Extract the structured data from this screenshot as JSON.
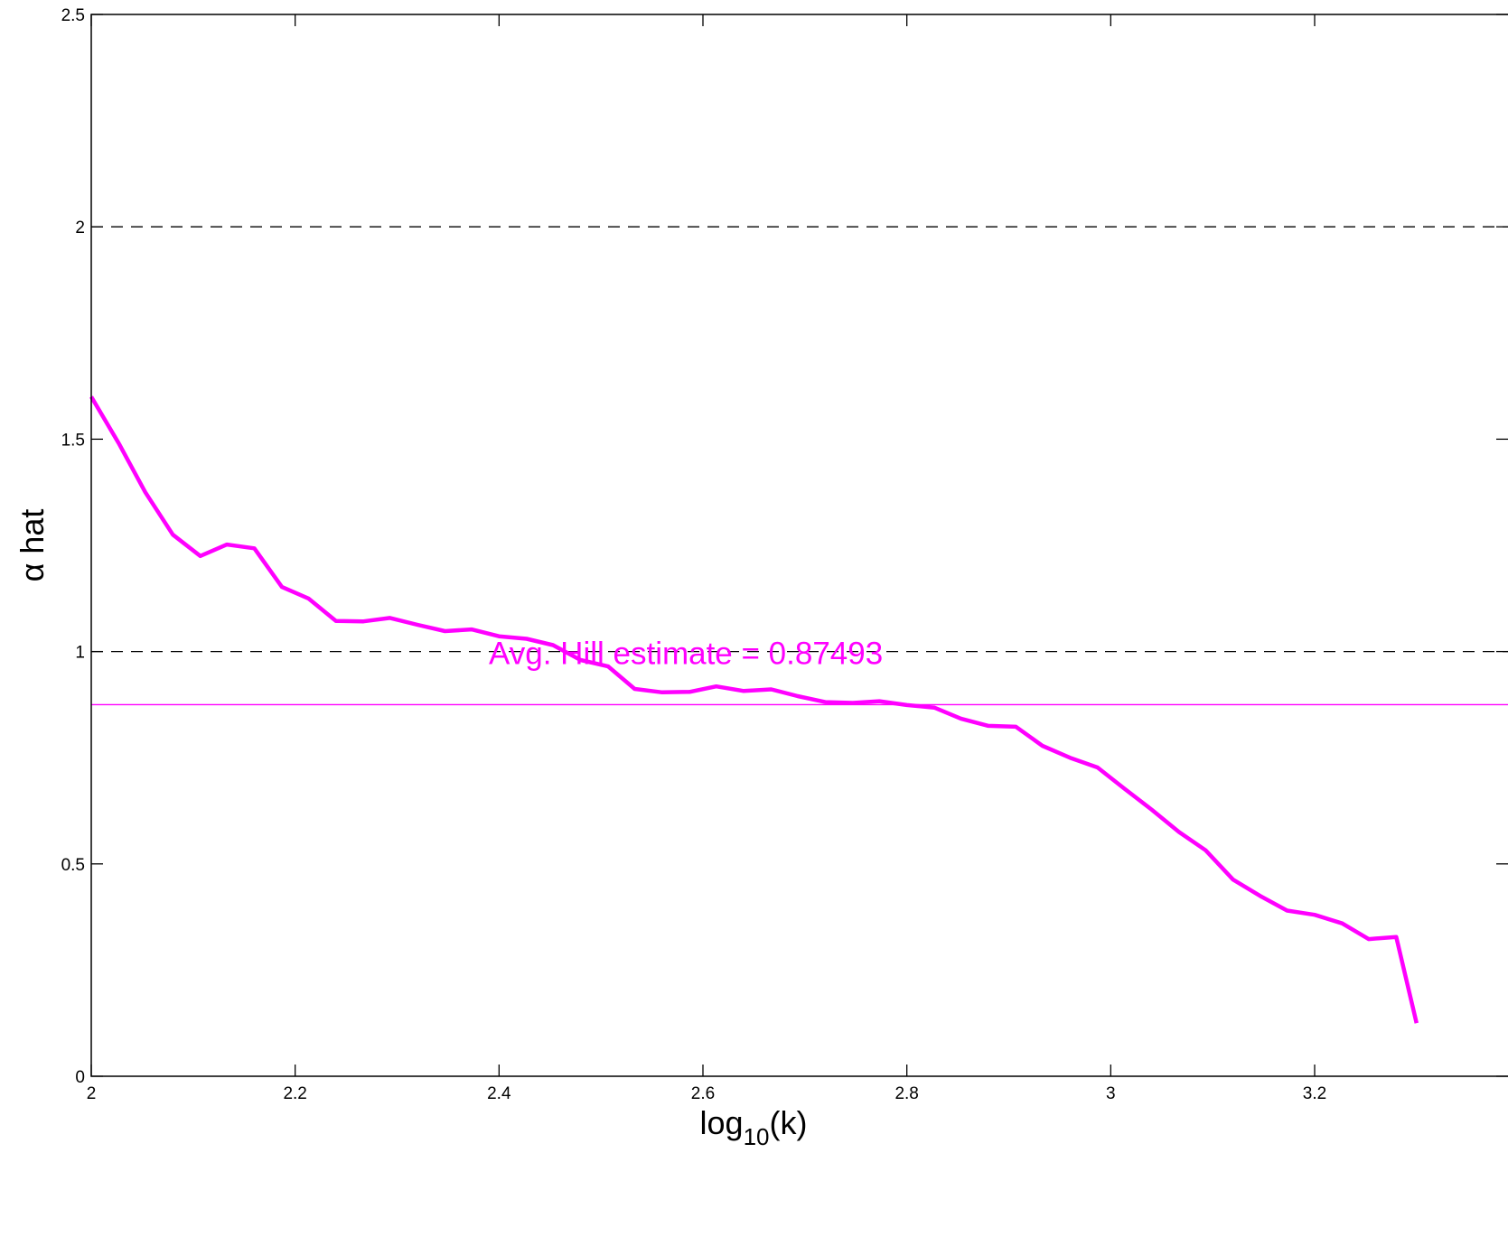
{
  "chart_data": {
    "type": "line",
    "title": "",
    "xlabel": {
      "base": "log",
      "subscript": "10",
      "suffix": "(k)"
    },
    "ylabel": "α hat",
    "xlim": [
      2,
      3.3
    ],
    "ylim": [
      0,
      2.5
    ],
    "x_ticks": [
      2,
      2.2,
      2.4,
      2.6,
      2.8,
      3,
      3.2
    ],
    "x_tick_labels": [
      "2",
      "2.2",
      "2.4",
      "2.6",
      "2.8",
      "3",
      "3.2"
    ],
    "y_ticks": [
      0,
      0.5,
      1,
      1.5,
      2,
      2.5
    ],
    "y_tick_labels": [
      "0",
      "0.5",
      "1",
      "1.5",
      "2",
      "2.5"
    ],
    "grid": false,
    "reference_lines": [
      {
        "y": 2,
        "style": "dashed",
        "color": "#000000"
      },
      {
        "y": 1,
        "style": "dashed",
        "color": "#000000"
      }
    ],
    "average_line": {
      "y": 0.87493,
      "color": "#ff00ff"
    },
    "annotation": {
      "text": "Avg. Hill estimate = 0.87493",
      "x": 2.39,
      "y": 0.97,
      "color": "#ff00ff"
    },
    "series": [
      {
        "color": "#ff00ff",
        "x": [
          2.0,
          2.027,
          2.053,
          2.08,
          2.107,
          2.133,
          2.16,
          2.187,
          2.213,
          2.24,
          2.267,
          2.293,
          2.32,
          2.347,
          2.373,
          2.4,
          2.427,
          2.453,
          2.48,
          2.507,
          2.533,
          2.56,
          2.587,
          2.613,
          2.64,
          2.667,
          2.693,
          2.72,
          2.747,
          2.773,
          2.8,
          2.827,
          2.853,
          2.88,
          2.907,
          2.933,
          2.96,
          2.987,
          3.013,
          3.04,
          3.067,
          3.093,
          3.12,
          3.147,
          3.173,
          3.2,
          3.227,
          3.253,
          3.28,
          3.3
        ],
        "y": [
          1.6,
          1.49,
          1.375,
          1.275,
          1.225,
          1.252,
          1.243,
          1.152,
          1.125,
          1.072,
          1.071,
          1.079,
          1.063,
          1.048,
          1.052,
          1.036,
          1.03,
          1.015,
          0.98,
          0.965,
          0.912,
          0.904,
          0.905,
          0.918,
          0.907,
          0.911,
          0.895,
          0.881,
          0.879,
          0.883,
          0.874,
          0.868,
          0.842,
          0.825,
          0.823,
          0.778,
          0.75,
          0.727,
          0.678,
          0.628,
          0.575,
          0.532,
          0.463,
          0.424,
          0.39,
          0.38,
          0.36,
          0.323,
          0.328,
          0.125
        ]
      }
    ]
  }
}
